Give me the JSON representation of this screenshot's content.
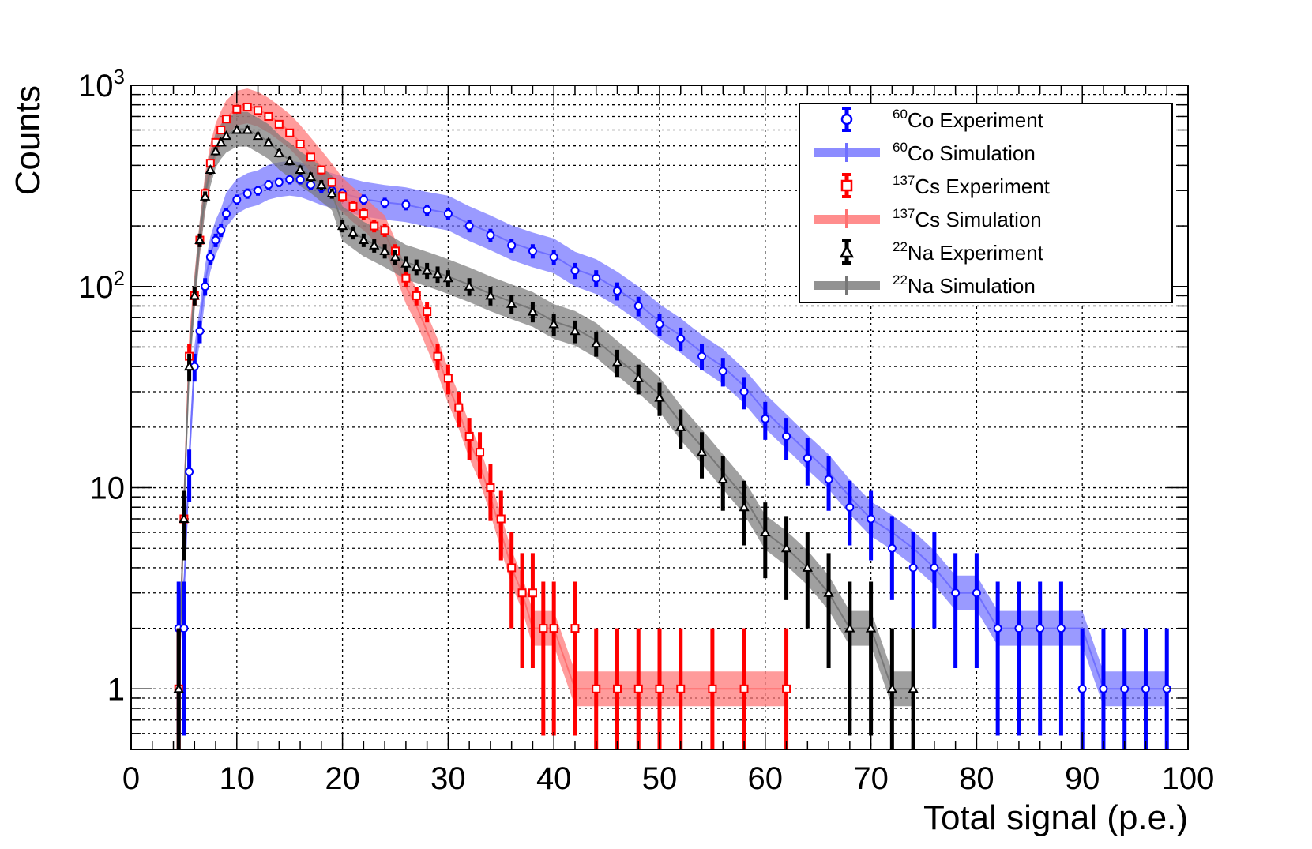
{
  "chart_data": {
    "type": "line",
    "title": "",
    "xlabel": "Total signal (p.e.)",
    "ylabel": "Counts",
    "xlim": [
      0,
      100
    ],
    "ylim": [
      0.5,
      1000
    ],
    "yscale": "log",
    "grid": true,
    "x_ticks": [
      "0",
      "10",
      "20",
      "30",
      "40",
      "50",
      "60",
      "70",
      "80",
      "90",
      "100"
    ],
    "y_ticks": [
      {
        "value": 1,
        "base": "1",
        "exp": ""
      },
      {
        "value": 10,
        "base": "10",
        "exp": ""
      },
      {
        "value": 100,
        "base": "10",
        "exp": "2"
      },
      {
        "value": 1000,
        "base": "10",
        "exp": "3"
      }
    ],
    "legend_position": "top-right",
    "series": [
      {
        "name_sup": "60",
        "name": "Co Experiment",
        "color": "#0000ff",
        "style": "experiment",
        "marker": "circle",
        "x": [
          4.5,
          5,
          5.5,
          6,
          6.5,
          7,
          7.5,
          8,
          8.5,
          9,
          10,
          11,
          12,
          13,
          14,
          15,
          16,
          17,
          18,
          19,
          20,
          22,
          24,
          26,
          28,
          30,
          32,
          34,
          36,
          38,
          40,
          42,
          44,
          46,
          48,
          50,
          52,
          54,
          56,
          58,
          60,
          62,
          64,
          66,
          68,
          70,
          72,
          74,
          76,
          78,
          80,
          82,
          84,
          86,
          88,
          90,
          92,
          94,
          96,
          98
        ],
        "y": [
          2,
          2,
          12,
          40,
          60,
          100,
          140,
          170,
          190,
          230,
          270,
          290,
          300,
          320,
          330,
          340,
          340,
          320,
          310,
          300,
          290,
          270,
          260,
          255,
          240,
          230,
          200,
          180,
          160,
          150,
          140,
          120,
          110,
          95,
          80,
          65,
          55,
          45,
          38,
          30,
          22,
          18,
          14,
          11,
          8,
          7,
          5,
          4,
          4,
          3,
          3,
          2,
          2,
          2,
          2,
          1,
          1,
          1,
          1,
          1
        ]
      },
      {
        "name_sup": "60",
        "name": "Co Simulation",
        "color": "#6f6fff",
        "style": "simulation",
        "x": [
          4.5,
          5,
          5.5,
          6,
          6.5,
          7,
          7.5,
          8,
          8.5,
          9,
          10,
          11,
          12,
          13,
          14,
          15,
          16,
          17,
          18,
          19,
          20,
          22,
          24,
          26,
          28,
          30,
          32,
          34,
          36,
          38,
          40,
          42,
          44,
          46,
          48,
          50,
          52,
          54,
          56,
          58,
          60,
          62,
          64,
          66,
          68,
          70,
          72,
          74,
          76,
          78,
          80,
          82,
          84,
          86,
          88,
          90,
          92,
          94,
          96,
          98
        ],
        "y": [
          2,
          3,
          14,
          42,
          65,
          105,
          145,
          175,
          200,
          240,
          280,
          300,
          310,
          330,
          340,
          345,
          340,
          325,
          310,
          300,
          290,
          272,
          262,
          255,
          242,
          232,
          205,
          185,
          165,
          152,
          142,
          122,
          112,
          97,
          82,
          67,
          57,
          47,
          40,
          32,
          24,
          19,
          15,
          12,
          9,
          7,
          6,
          5,
          4,
          3,
          3,
          2,
          2,
          2,
          2,
          2,
          1,
          1,
          1,
          1
        ]
      },
      {
        "name_sup": "137",
        "name": "Cs Experiment",
        "color": "#ff0000",
        "style": "experiment",
        "marker": "square",
        "x": [
          4.5,
          5,
          5.5,
          6,
          6.5,
          7,
          7.5,
          8,
          8.5,
          9,
          10,
          11,
          12,
          13,
          14,
          15,
          16,
          17,
          18,
          19,
          20,
          21,
          22,
          23,
          24,
          25,
          26,
          27,
          28,
          29,
          30,
          31,
          32,
          33,
          34,
          35,
          36,
          37,
          38,
          39,
          40,
          42,
          44,
          46,
          48,
          50,
          52,
          55,
          58,
          62
        ],
        "y": [
          1,
          7,
          45,
          90,
          170,
          290,
          410,
          520,
          600,
          680,
          760,
          780,
          750,
          700,
          640,
          580,
          510,
          440,
          380,
          330,
          280,
          250,
          230,
          200,
          190,
          150,
          110,
          90,
          75,
          45,
          35,
          25,
          18,
          15,
          10,
          7,
          4,
          3,
          3,
          2,
          2,
          2,
          1,
          1,
          1,
          1,
          1,
          1,
          1,
          1
        ]
      },
      {
        "name_sup": "137",
        "name": "Cs Simulation",
        "color": "#ff7070",
        "style": "simulation",
        "x": [
          4.5,
          5,
          5.5,
          6,
          6.5,
          7,
          7.5,
          8,
          8.5,
          9,
          10,
          11,
          12,
          13,
          14,
          15,
          16,
          17,
          18,
          19,
          20,
          21,
          22,
          23,
          24,
          25,
          26,
          27,
          28,
          29,
          30,
          31,
          32,
          33,
          34,
          35,
          36,
          37,
          38,
          39,
          40,
          42,
          44,
          46,
          48,
          50,
          52,
          55,
          58,
          62
        ],
        "y": [
          1,
          8,
          48,
          95,
          175,
          300,
          420,
          530,
          610,
          690,
          770,
          790,
          760,
          710,
          650,
          590,
          520,
          450,
          390,
          335,
          285,
          255,
          232,
          205,
          185,
          140,
          100,
          80,
          60,
          45,
          32,
          24,
          17,
          13,
          9,
          6,
          4,
          3,
          2,
          2,
          2,
          1,
          1,
          1,
          1,
          1,
          1,
          1,
          1,
          1
        ]
      },
      {
        "name_sup": "22",
        "name": "Na Experiment",
        "color": "#000000",
        "style": "experiment",
        "marker": "triangle",
        "x": [
          4.5,
          5,
          5.5,
          6,
          6.5,
          7,
          7.5,
          8,
          8.5,
          9,
          10,
          11,
          12,
          13,
          14,
          15,
          16,
          17,
          18,
          19,
          20,
          21,
          22,
          23,
          24,
          25,
          26,
          27,
          28,
          29,
          30,
          32,
          34,
          36,
          38,
          40,
          42,
          44,
          46,
          48,
          50,
          52,
          54,
          56,
          58,
          60,
          62,
          64,
          66,
          68,
          70,
          72,
          74
        ],
        "y": [
          1,
          7,
          40,
          90,
          170,
          280,
          380,
          470,
          520,
          560,
          600,
          600,
          560,
          520,
          460,
          420,
          380,
          350,
          320,
          290,
          200,
          185,
          170,
          160,
          150,
          140,
          130,
          125,
          120,
          115,
          110,
          100,
          90,
          82,
          75,
          65,
          60,
          52,
          42,
          35,
          28,
          20,
          15,
          11,
          8,
          6,
          5,
          4,
          3,
          2,
          2,
          1,
          1
        ]
      },
      {
        "name_sup": "22",
        "name": "Na Simulation",
        "color": "#777777",
        "style": "simulation",
        "x": [
          4.5,
          5,
          5.5,
          6,
          6.5,
          7,
          7.5,
          8,
          8.5,
          9,
          10,
          11,
          12,
          13,
          14,
          15,
          16,
          17,
          18,
          19,
          20,
          21,
          22,
          23,
          24,
          25,
          26,
          27,
          28,
          29,
          30,
          32,
          34,
          36,
          38,
          40,
          42,
          44,
          46,
          48,
          50,
          52,
          54,
          56,
          58,
          60,
          62,
          64,
          66,
          68,
          70,
          72,
          74
        ],
        "y": [
          1,
          8,
          42,
          92,
          175,
          285,
          385,
          475,
          525,
          565,
          605,
          605,
          565,
          525,
          465,
          425,
          385,
          355,
          322,
          292,
          205,
          188,
          172,
          162,
          152,
          142,
          132,
          127,
          122,
          117,
          112,
          102,
          92,
          84,
          77,
          67,
          62,
          54,
          44,
          36,
          29,
          21,
          16,
          12,
          9,
          6,
          5,
          4,
          3,
          2,
          2,
          1,
          1
        ]
      }
    ]
  }
}
